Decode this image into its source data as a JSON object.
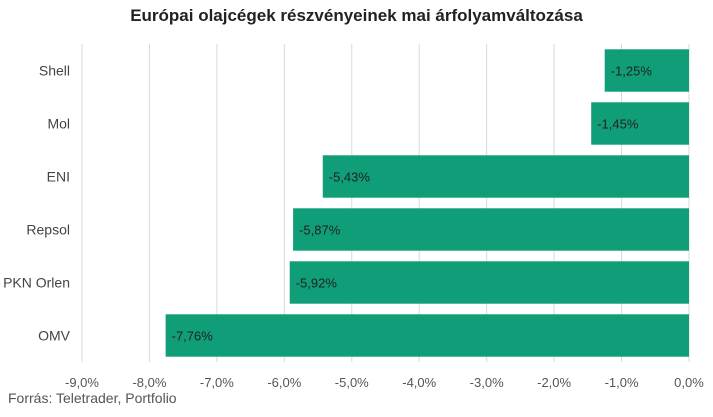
{
  "chart_data": {
    "type": "bar",
    "orientation": "horizontal",
    "title": "Európai olajcégek részvényeinek mai árfolyamváltozása",
    "categories": [
      "Shell",
      "Mol",
      "ENI",
      "Repsol",
      "PKN Orlen",
      "OMV"
    ],
    "series": [
      {
        "values": [
          -1.25,
          -1.45,
          -5.43,
          -5.87,
          -5.92,
          -7.76
        ],
        "labels": [
          "-1,25%",
          "-1,45%",
          "-5,43%",
          "-5,87%",
          "-5,92%",
          "-7,76%"
        ]
      }
    ],
    "xlim": [
      -9,
      0
    ],
    "xticks": [
      -9,
      -8,
      -7,
      -6,
      -5,
      -4,
      -3,
      -2,
      -1,
      0
    ],
    "xtick_labels": [
      "-9,0%",
      "-8,0%",
      "-7,0%",
      "-6,0%",
      "-5,0%",
      "-4,0%",
      "-3,0%",
      "-2,0%",
      "-1,0%",
      "0,0%"
    ],
    "grid": true,
    "legend": "none",
    "bar_color": "#0f9e78",
    "grid_color": "#d9d9d9"
  },
  "source": "Forrás: Teletrader, Portfolio"
}
